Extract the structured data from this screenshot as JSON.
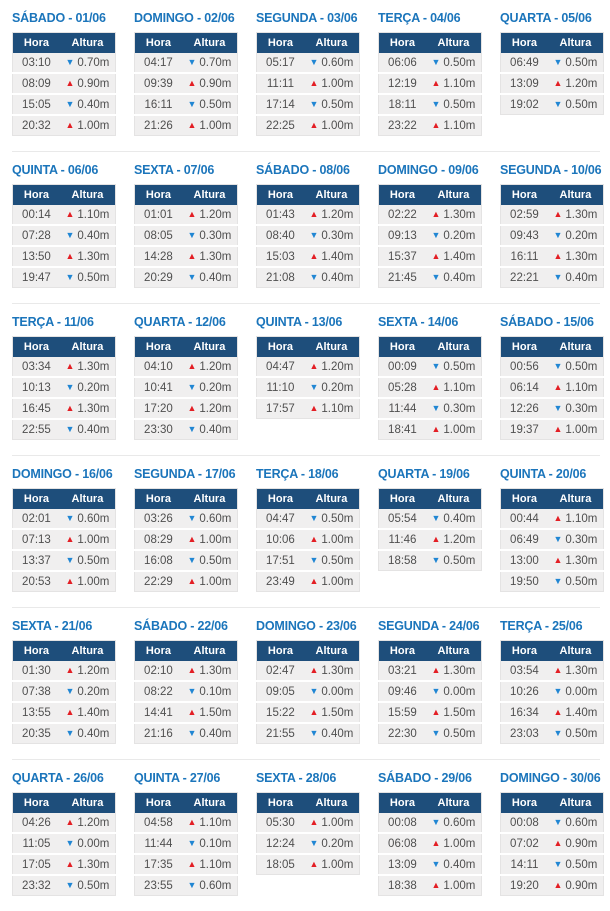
{
  "labels": {
    "time_header": "Hora",
    "height_header": "Altura"
  },
  "icons": {
    "rise": "▲",
    "fall": "▼"
  },
  "colors": {
    "title_blue": "#1b75bb",
    "header_bg": "#1e4e7b",
    "header_text": "#ffffff",
    "row_bg": "#f0efef",
    "cell_text": "#4f4f4f",
    "rise_red": "#e31e24",
    "fall_blue": "#2086d3",
    "separator": "#e9e9e9"
  },
  "days": [
    {
      "title": "SÁBADO - 01/06",
      "tides": [
        {
          "time": "03:10",
          "direction": "fall",
          "height": "0.70m"
        },
        {
          "time": "08:09",
          "direction": "rise",
          "height": "0.90m"
        },
        {
          "time": "15:05",
          "direction": "fall",
          "height": "0.40m"
        },
        {
          "time": "20:32",
          "direction": "rise",
          "height": "1.00m"
        }
      ]
    },
    {
      "title": "DOMINGO - 02/06",
      "tides": [
        {
          "time": "04:17",
          "direction": "fall",
          "height": "0.70m"
        },
        {
          "time": "09:39",
          "direction": "rise",
          "height": "0.90m"
        },
        {
          "time": "16:11",
          "direction": "fall",
          "height": "0.50m"
        },
        {
          "time": "21:26",
          "direction": "rise",
          "height": "1.00m"
        }
      ]
    },
    {
      "title": "SEGUNDA - 03/06",
      "tides": [
        {
          "time": "05:17",
          "direction": "fall",
          "height": "0.60m"
        },
        {
          "time": "11:11",
          "direction": "rise",
          "height": "1.00m"
        },
        {
          "time": "17:14",
          "direction": "fall",
          "height": "0.50m"
        },
        {
          "time": "22:25",
          "direction": "rise",
          "height": "1.00m"
        }
      ]
    },
    {
      "title": "TERÇA - 04/06",
      "tides": [
        {
          "time": "06:06",
          "direction": "fall",
          "height": "0.50m"
        },
        {
          "time": "12:19",
          "direction": "rise",
          "height": "1.10m"
        },
        {
          "time": "18:11",
          "direction": "fall",
          "height": "0.50m"
        },
        {
          "time": "23:22",
          "direction": "rise",
          "height": "1.10m"
        }
      ]
    },
    {
      "title": "QUARTA - 05/06",
      "tides": [
        {
          "time": "06:49",
          "direction": "fall",
          "height": "0.50m"
        },
        {
          "time": "13:09",
          "direction": "rise",
          "height": "1.20m"
        },
        {
          "time": "19:02",
          "direction": "fall",
          "height": "0.50m"
        }
      ]
    },
    {
      "title": "QUINTA - 06/06",
      "tides": [
        {
          "time": "00:14",
          "direction": "rise",
          "height": "1.10m"
        },
        {
          "time": "07:28",
          "direction": "fall",
          "height": "0.40m"
        },
        {
          "time": "13:50",
          "direction": "rise",
          "height": "1.30m"
        },
        {
          "time": "19:47",
          "direction": "fall",
          "height": "0.50m"
        }
      ]
    },
    {
      "title": "SEXTA - 07/06",
      "tides": [
        {
          "time": "01:01",
          "direction": "rise",
          "height": "1.20m"
        },
        {
          "time": "08:05",
          "direction": "fall",
          "height": "0.30m"
        },
        {
          "time": "14:28",
          "direction": "rise",
          "height": "1.30m"
        },
        {
          "time": "20:29",
          "direction": "fall",
          "height": "0.40m"
        }
      ]
    },
    {
      "title": "SÁBADO - 08/06",
      "tides": [
        {
          "time": "01:43",
          "direction": "rise",
          "height": "1.20m"
        },
        {
          "time": "08:40",
          "direction": "fall",
          "height": "0.30m"
        },
        {
          "time": "15:03",
          "direction": "rise",
          "height": "1.40m"
        },
        {
          "time": "21:08",
          "direction": "fall",
          "height": "0.40m"
        }
      ]
    },
    {
      "title": "DOMINGO - 09/06",
      "tides": [
        {
          "time": "02:22",
          "direction": "rise",
          "height": "1.30m"
        },
        {
          "time": "09:13",
          "direction": "fall",
          "height": "0.20m"
        },
        {
          "time": "15:37",
          "direction": "rise",
          "height": "1.40m"
        },
        {
          "time": "21:45",
          "direction": "fall",
          "height": "0.40m"
        }
      ]
    },
    {
      "title": "SEGUNDA - 10/06",
      "tides": [
        {
          "time": "02:59",
          "direction": "rise",
          "height": "1.30m"
        },
        {
          "time": "09:43",
          "direction": "fall",
          "height": "0.20m"
        },
        {
          "time": "16:11",
          "direction": "rise",
          "height": "1.30m"
        },
        {
          "time": "22:21",
          "direction": "fall",
          "height": "0.40m"
        }
      ]
    },
    {
      "title": "TERÇA - 11/06",
      "tides": [
        {
          "time": "03:34",
          "direction": "rise",
          "height": "1.30m"
        },
        {
          "time": "10:13",
          "direction": "fall",
          "height": "0.20m"
        },
        {
          "time": "16:45",
          "direction": "rise",
          "height": "1.30m"
        },
        {
          "time": "22:55",
          "direction": "fall",
          "height": "0.40m"
        }
      ]
    },
    {
      "title": "QUARTA - 12/06",
      "tides": [
        {
          "time": "04:10",
          "direction": "rise",
          "height": "1.20m"
        },
        {
          "time": "10:41",
          "direction": "fall",
          "height": "0.20m"
        },
        {
          "time": "17:20",
          "direction": "rise",
          "height": "1.20m"
        },
        {
          "time": "23:30",
          "direction": "fall",
          "height": "0.40m"
        }
      ]
    },
    {
      "title": "QUINTA - 13/06",
      "tides": [
        {
          "time": "04:47",
          "direction": "rise",
          "height": "1.20m"
        },
        {
          "time": "11:10",
          "direction": "fall",
          "height": "0.20m"
        },
        {
          "time": "17:57",
          "direction": "rise",
          "height": "1.10m"
        }
      ]
    },
    {
      "title": "SEXTA - 14/06",
      "tides": [
        {
          "time": "00:09",
          "direction": "fall",
          "height": "0.50m"
        },
        {
          "time": "05:28",
          "direction": "rise",
          "height": "1.10m"
        },
        {
          "time": "11:44",
          "direction": "fall",
          "height": "0.30m"
        },
        {
          "time": "18:41",
          "direction": "rise",
          "height": "1.00m"
        }
      ]
    },
    {
      "title": "SÁBADO - 15/06",
      "tides": [
        {
          "time": "00:56",
          "direction": "fall",
          "height": "0.50m"
        },
        {
          "time": "06:14",
          "direction": "rise",
          "height": "1.10m"
        },
        {
          "time": "12:26",
          "direction": "fall",
          "height": "0.30m"
        },
        {
          "time": "19:37",
          "direction": "rise",
          "height": "1.00m"
        }
      ]
    },
    {
      "title": "DOMINGO - 16/06",
      "tides": [
        {
          "time": "02:01",
          "direction": "fall",
          "height": "0.60m"
        },
        {
          "time": "07:13",
          "direction": "rise",
          "height": "1.00m"
        },
        {
          "time": "13:37",
          "direction": "fall",
          "height": "0.50m"
        },
        {
          "time": "20:53",
          "direction": "rise",
          "height": "1.00m"
        }
      ]
    },
    {
      "title": "SEGUNDA - 17/06",
      "tides": [
        {
          "time": "03:26",
          "direction": "fall",
          "height": "0.60m"
        },
        {
          "time": "08:29",
          "direction": "rise",
          "height": "1.00m"
        },
        {
          "time": "16:08",
          "direction": "fall",
          "height": "0.50m"
        },
        {
          "time": "22:29",
          "direction": "rise",
          "height": "1.00m"
        }
      ]
    },
    {
      "title": "TERÇA - 18/06",
      "tides": [
        {
          "time": "04:47",
          "direction": "fall",
          "height": "0.50m"
        },
        {
          "time": "10:06",
          "direction": "rise",
          "height": "1.00m"
        },
        {
          "time": "17:51",
          "direction": "fall",
          "height": "0.50m"
        },
        {
          "time": "23:49",
          "direction": "rise",
          "height": "1.00m"
        }
      ]
    },
    {
      "title": "QUARTA - 19/06",
      "tides": [
        {
          "time": "05:54",
          "direction": "fall",
          "height": "0.40m"
        },
        {
          "time": "11:46",
          "direction": "rise",
          "height": "1.20m"
        },
        {
          "time": "18:58",
          "direction": "fall",
          "height": "0.50m"
        }
      ]
    },
    {
      "title": "QUINTA - 20/06",
      "tides": [
        {
          "time": "00:44",
          "direction": "rise",
          "height": "1.10m"
        },
        {
          "time": "06:49",
          "direction": "fall",
          "height": "0.30m"
        },
        {
          "time": "13:00",
          "direction": "rise",
          "height": "1.30m"
        },
        {
          "time": "19:50",
          "direction": "fall",
          "height": "0.50m"
        }
      ]
    },
    {
      "title": "SEXTA - 21/06",
      "tides": [
        {
          "time": "01:30",
          "direction": "rise",
          "height": "1.20m"
        },
        {
          "time": "07:38",
          "direction": "fall",
          "height": "0.20m"
        },
        {
          "time": "13:55",
          "direction": "rise",
          "height": "1.40m"
        },
        {
          "time": "20:35",
          "direction": "fall",
          "height": "0.40m"
        }
      ]
    },
    {
      "title": "SÁBADO - 22/06",
      "tides": [
        {
          "time": "02:10",
          "direction": "rise",
          "height": "1.30m"
        },
        {
          "time": "08:22",
          "direction": "fall",
          "height": "0.10m"
        },
        {
          "time": "14:41",
          "direction": "rise",
          "height": "1.50m"
        },
        {
          "time": "21:16",
          "direction": "fall",
          "height": "0.40m"
        }
      ]
    },
    {
      "title": "DOMINGO - 23/06",
      "tides": [
        {
          "time": "02:47",
          "direction": "rise",
          "height": "1.30m"
        },
        {
          "time": "09:05",
          "direction": "fall",
          "height": "0.00m"
        },
        {
          "time": "15:22",
          "direction": "rise",
          "height": "1.50m"
        },
        {
          "time": "21:55",
          "direction": "fall",
          "height": "0.40m"
        }
      ]
    },
    {
      "title": "SEGUNDA - 24/06",
      "tides": [
        {
          "time": "03:21",
          "direction": "rise",
          "height": "1.30m"
        },
        {
          "time": "09:46",
          "direction": "fall",
          "height": "0.00m"
        },
        {
          "time": "15:59",
          "direction": "rise",
          "height": "1.50m"
        },
        {
          "time": "22:30",
          "direction": "fall",
          "height": "0.50m"
        }
      ]
    },
    {
      "title": "TERÇA - 25/06",
      "tides": [
        {
          "time": "03:54",
          "direction": "rise",
          "height": "1.30m"
        },
        {
          "time": "10:26",
          "direction": "fall",
          "height": "0.00m"
        },
        {
          "time": "16:34",
          "direction": "rise",
          "height": "1.40m"
        },
        {
          "time": "23:03",
          "direction": "fall",
          "height": "0.50m"
        }
      ]
    },
    {
      "title": "QUARTA - 26/06",
      "tides": [
        {
          "time": "04:26",
          "direction": "rise",
          "height": "1.20m"
        },
        {
          "time": "11:05",
          "direction": "fall",
          "height": "0.00m"
        },
        {
          "time": "17:05",
          "direction": "rise",
          "height": "1.30m"
        },
        {
          "time": "23:32",
          "direction": "fall",
          "height": "0.50m"
        }
      ]
    },
    {
      "title": "QUINTA - 27/06",
      "tides": [
        {
          "time": "04:58",
          "direction": "rise",
          "height": "1.10m"
        },
        {
          "time": "11:44",
          "direction": "fall",
          "height": "0.10m"
        },
        {
          "time": "17:35",
          "direction": "rise",
          "height": "1.10m"
        },
        {
          "time": "23:55",
          "direction": "fall",
          "height": "0.60m"
        }
      ]
    },
    {
      "title": "SEXTA - 28/06",
      "tides": [
        {
          "time": "05:30",
          "direction": "rise",
          "height": "1.00m"
        },
        {
          "time": "12:24",
          "direction": "fall",
          "height": "0.20m"
        },
        {
          "time": "18:05",
          "direction": "rise",
          "height": "1.00m"
        }
      ]
    },
    {
      "title": "SÁBADO - 29/06",
      "tides": [
        {
          "time": "00:08",
          "direction": "fall",
          "height": "0.60m"
        },
        {
          "time": "06:08",
          "direction": "rise",
          "height": "1.00m"
        },
        {
          "time": "13:09",
          "direction": "fall",
          "height": "0.40m"
        },
        {
          "time": "18:38",
          "direction": "rise",
          "height": "1.00m"
        }
      ]
    },
    {
      "title": "DOMINGO - 30/06",
      "tides": [
        {
          "time": "00:08",
          "direction": "fall",
          "height": "0.60m"
        },
        {
          "time": "07:02",
          "direction": "rise",
          "height": "0.90m"
        },
        {
          "time": "14:11",
          "direction": "fall",
          "height": "0.50m"
        },
        {
          "time": "19:20",
          "direction": "rise",
          "height": "0.90m"
        }
      ]
    }
  ]
}
